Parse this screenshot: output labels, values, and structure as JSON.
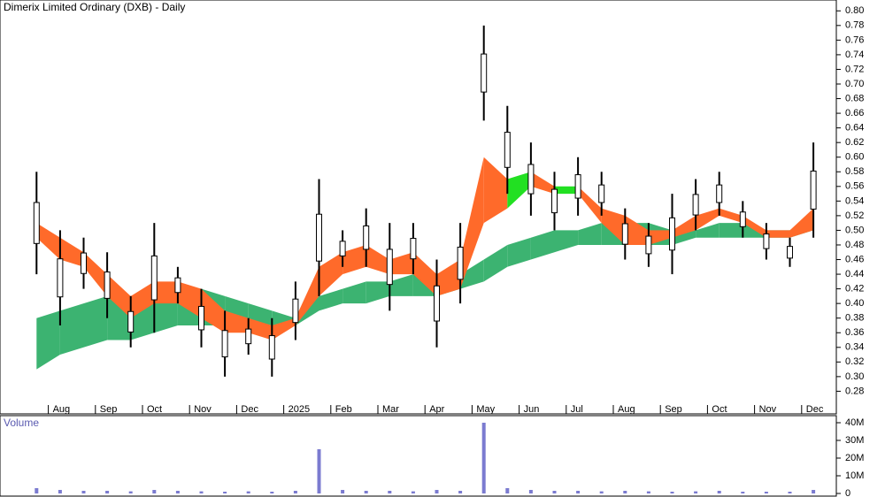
{
  "chart_data": [
    {
      "type": "hilo",
      "title": "Dimerix Limited Ordinary (DXB) - Daily",
      "categories": [
        null,
        "Aug",
        null,
        "Sep",
        null,
        "Oct",
        null,
        "Nov",
        null,
        "Dec",
        null,
        "2025",
        null,
        "Feb",
        null,
        "Mar",
        null,
        "Apr",
        null,
        "May",
        null,
        "Jun",
        null,
        "Jul",
        null,
        "Aug",
        null,
        "Sep",
        null,
        "Oct",
        null,
        "Nov",
        null,
        "Dec"
      ],
      "high": [
        0.58,
        0.5,
        0.49,
        0.47,
        0.41,
        0.51,
        0.45,
        0.42,
        0.39,
        0.38,
        0.38,
        0.43,
        0.57,
        0.5,
        0.53,
        0.51,
        0.51,
        0.46,
        0.51,
        0.78,
        0.67,
        0.62,
        0.58,
        0.6,
        0.58,
        0.53,
        0.51,
        0.55,
        0.57,
        0.58,
        0.54,
        0.51,
        0.49,
        0.62
      ],
      "low": [
        0.44,
        0.37,
        0.42,
        0.38,
        0.34,
        0.36,
        0.4,
        0.34,
        0.3,
        0.33,
        0.3,
        0.35,
        0.41,
        0.45,
        0.45,
        0.39,
        0.44,
        0.34,
        0.4,
        0.65,
        0.55,
        0.52,
        0.5,
        0.52,
        0.52,
        0.46,
        0.45,
        0.44,
        0.5,
        0.52,
        0.49,
        0.46,
        0.45,
        0.49
      ],
      "color": "#000000",
      "long_band": {
        "color": "#3cb371",
        "upper": [
          0.38,
          0.39,
          0.4,
          0.41,
          0.41,
          0.42,
          0.42,
          0.42,
          0.41,
          0.4,
          0.39,
          0.38,
          0.41,
          0.42,
          0.43,
          0.43,
          0.44,
          0.44,
          0.44,
          0.46,
          0.48,
          0.49,
          0.5,
          0.5,
          0.51,
          0.51,
          0.51,
          0.5,
          0.5,
          0.51,
          0.51,
          0.5,
          0.5,
          0.51
        ],
        "lower": [
          0.31,
          0.33,
          0.34,
          0.35,
          0.35,
          0.36,
          0.37,
          0.37,
          0.37,
          0.37,
          0.37,
          0.37,
          0.39,
          0.4,
          0.4,
          0.41,
          0.41,
          0.41,
          0.42,
          0.43,
          0.45,
          0.46,
          0.47,
          0.48,
          0.48,
          0.48,
          0.48,
          0.48,
          0.49,
          0.49,
          0.49,
          0.49,
          0.49,
          0.5
        ]
      },
      "short_band": {
        "color_above": "#22e022",
        "color_below": "#ff6a2a",
        "upper": [
          0.51,
          0.49,
          0.47,
          0.44,
          0.41,
          0.43,
          0.43,
          0.42,
          0.39,
          0.38,
          0.37,
          0.38,
          0.45,
          0.47,
          0.48,
          0.46,
          0.47,
          0.44,
          0.46,
          0.6,
          0.57,
          0.58,
          0.56,
          0.56,
          0.53,
          0.52,
          0.5,
          0.5,
          0.52,
          0.53,
          0.52,
          0.5,
          0.5,
          0.53
        ],
        "lower": [
          0.49,
          0.46,
          0.45,
          0.41,
          0.38,
          0.4,
          0.4,
          0.38,
          0.36,
          0.36,
          0.35,
          0.37,
          0.41,
          0.44,
          0.45,
          0.44,
          0.44,
          0.41,
          0.42,
          0.51,
          0.53,
          0.56,
          0.55,
          0.55,
          0.51,
          0.48,
          0.48,
          0.49,
          0.5,
          0.52,
          0.51,
          0.49,
          0.49,
          0.5
        ]
      },
      "ylim": [
        0.266,
        0.81
      ],
      "yticks": [
        0.28,
        {
          "value": 0.3,
          "label": "0.30"
        },
        0.32,
        0.34,
        0.36,
        0.38,
        {
          "value": 0.4,
          "label": "0.40"
        },
        0.42,
        0.44,
        0.46,
        0.48,
        {
          "value": 0.5,
          "label": "0.50"
        },
        0.52,
        0.54,
        0.56,
        0.58,
        {
          "value": 0.6,
          "label": "0.60"
        },
        0.62,
        0.64,
        0.66,
        0.68,
        {
          "value": 0.7,
          "label": "0.70"
        },
        0.72,
        0.74,
        0.76,
        0.78,
        {
          "value": 0.8,
          "label": "0.80"
        }
      ]
    },
    {
      "type": "bar",
      "title": "Volume",
      "color": "#7b7bd0",
      "values": [
        3000000,
        2000000,
        1500000,
        1500000,
        1200000,
        2000000,
        1500000,
        1200000,
        1000000,
        1200000,
        1000000,
        1500000,
        25000000,
        2000000,
        1500000,
        1500000,
        1200000,
        2000000,
        1500000,
        40000000,
        3000000,
        2000000,
        1500000,
        1500000,
        1200000,
        1500000,
        1200000,
        1000000,
        1200000,
        1500000,
        1000000,
        1000000,
        1000000,
        2000000
      ],
      "ylim": [
        0,
        42000000
      ],
      "yticks": [
        0,
        {
          "value": 10000000,
          "label": "10M"
        },
        {
          "value": 20000000,
          "label": "20M"
        },
        {
          "value": 30000000,
          "label": "30M"
        },
        {
          "value": 40000000,
          "label": "40M"
        }
      ]
    }
  ]
}
